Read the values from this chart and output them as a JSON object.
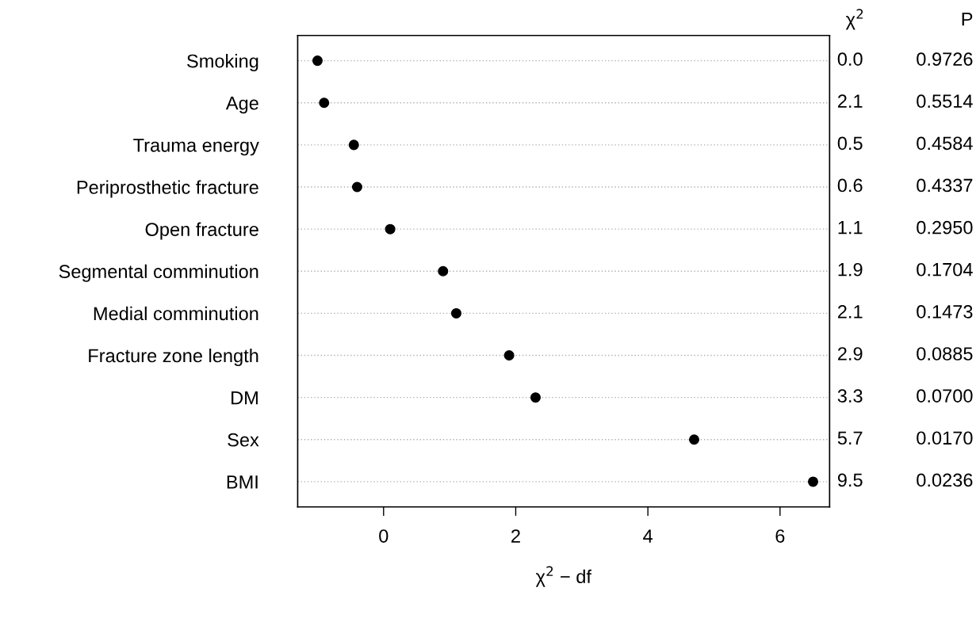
{
  "chart_data": {
    "type": "scatter",
    "orientation": "horizontal",
    "categories": [
      "Smoking",
      "Age",
      "Trauma energy",
      "Periprosthetic fracture",
      "Open fracture",
      "Segmental comminution",
      "Medial comminution",
      "Fracture zone length",
      "DM",
      "Sex",
      "BMI"
    ],
    "values": [
      -1.0,
      -0.9,
      -0.45,
      -0.4,
      0.1,
      0.9,
      1.1,
      1.9,
      2.3,
      4.7,
      6.5
    ],
    "color": "#000000",
    "marker": "circle",
    "grid": "y",
    "xlim": [
      -1.3,
      6.75
    ],
    "xticks": [
      0,
      2,
      4,
      6
    ],
    "xlabel": "χ$^{2}$ − df",
    "annotations": [
      "χ$^{2}$",
      "P",
      "0.0",
      "0.9726",
      "2.1",
      "0.5514",
      "0.5",
      "0.4584",
      "0.6",
      "0.4337",
      "1.1",
      "0.2950",
      "1.9",
      "0.1704",
      "2.1",
      "0.1473",
      "2.9",
      "0.0885",
      "3.3",
      "0.0700",
      "5.7",
      "0.0170",
      "9.5",
      "0.0236"
    ]
  }
}
